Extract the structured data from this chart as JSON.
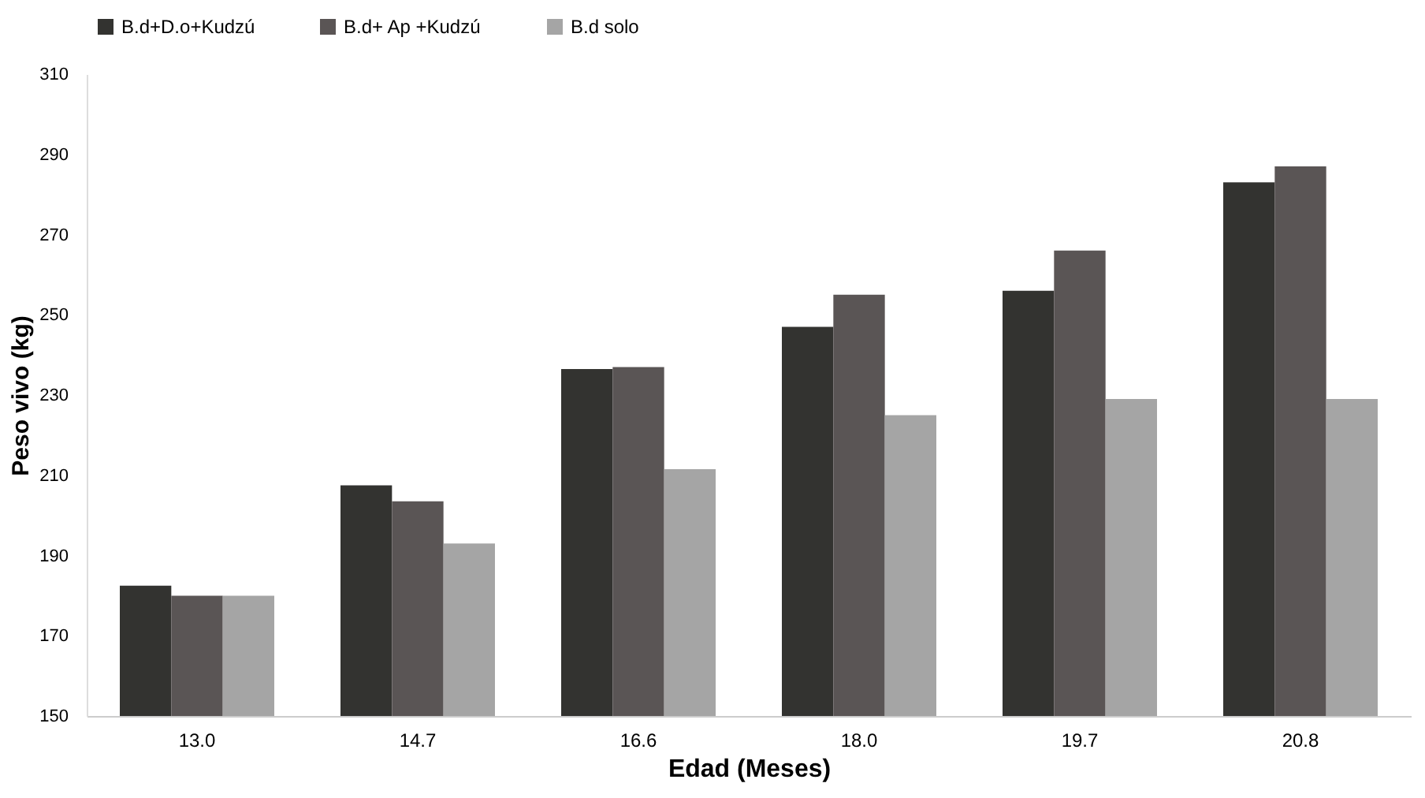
{
  "chart_data": {
    "type": "bar",
    "xlabel": "Edad (Meses)",
    "ylabel": "Peso vivo (kg)",
    "categories": [
      "13.0",
      "14.7",
      "16.6",
      "18.0",
      "19.7",
      "20.8"
    ],
    "series": [
      {
        "name": "B.d+D.o+Kudzú",
        "color": "#333330",
        "values": [
          182.5,
          207.5,
          236.5,
          247,
          256,
          283
        ]
      },
      {
        "name": "B.d+ Ap +Kudzú",
        "color": "#5a5555",
        "values": [
          180,
          203.5,
          237,
          255,
          266,
          287
        ]
      },
      {
        "name": "B.d solo",
        "color": "#a5a5a5",
        "values": [
          180,
          193,
          211.5,
          225,
          229,
          229
        ]
      }
    ],
    "ylim": [
      150,
      310
    ],
    "yticks": [
      150,
      170,
      190,
      210,
      230,
      250,
      270,
      290,
      310
    ],
    "grid": false,
    "legend": "top"
  }
}
